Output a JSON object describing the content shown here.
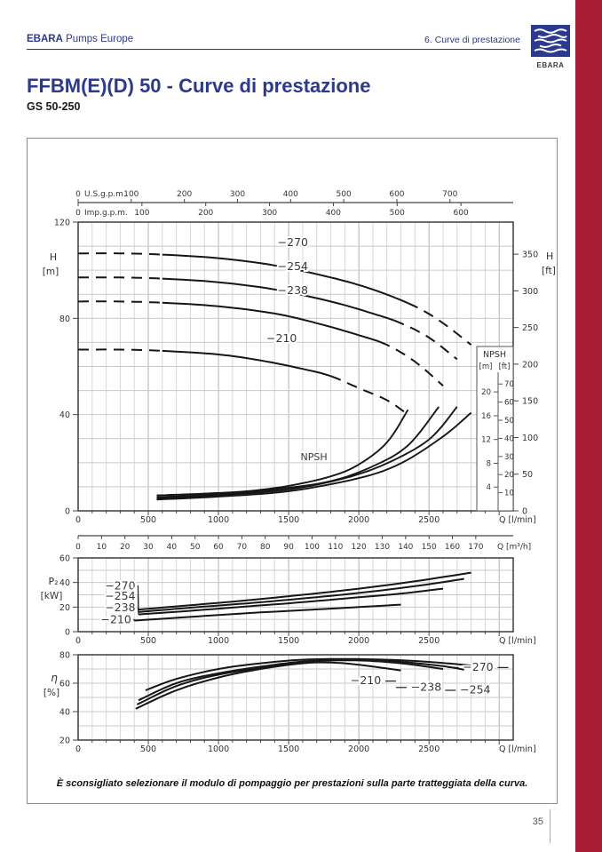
{
  "header": {
    "brand_bold": "EBARA",
    "brand_rest": " Pumps Europe",
    "section": "6.  Curve di prestazione",
    "logo_text": "EBARA"
  },
  "title": "FFBM(E)(D) 50 - Curve di prestazione",
  "subtitle": "GS 50-250",
  "note": "È sconsigliato selezionare il modulo di pompaggio per prestazioni sulla parte tratteggiata della curva.",
  "page_number": "35",
  "colors": {
    "accent_red": "#A81C33",
    "brand_blue": "#2B3990",
    "curve": "#161616",
    "grid_minor": "#d7d7d7",
    "grid_major": "#b2b2b2",
    "grid_h": "#c9c9c9",
    "axis": "#444444",
    "plot_border": "#2f2f2f"
  },
  "chart_data": [
    {
      "id": "head_flow",
      "type": "line",
      "x_axis": {
        "unit": "Q [l/min]",
        "lim": [
          0,
          3100
        ],
        "tick_labels": [
          0,
          500,
          1000,
          1500,
          2000,
          2500
        ],
        "minor_step": 100
      },
      "y_axis": {
        "label": "H",
        "unit": "[m]",
        "lim": [
          0,
          120
        ],
        "tick_labels": [
          120,
          80,
          40,
          0
        ],
        "minor_step": 10
      },
      "right_axis": {
        "label": "H",
        "unit": "[ft]",
        "ticks": [
          350,
          300,
          250,
          200,
          150,
          100,
          50,
          0
        ],
        "m_per_ft": 0.3048
      },
      "top_axes": [
        {
          "label": "U.S.g.p.m.",
          "lmin_per_unit": 3.785,
          "ticks": [
            0,
            100,
            200,
            300,
            400,
            500,
            600,
            700
          ]
        },
        {
          "label": "Imp.g.p.m.",
          "lmin_per_unit": 4.546,
          "ticks": [
            0,
            100,
            200,
            300,
            400,
            500,
            600
          ]
        }
      ],
      "secondary_x_axis": {
        "unit": "Q [m³/h]",
        "lmin_per_unit": 16.667,
        "ticks": [
          0,
          10,
          20,
          30,
          40,
          50,
          60,
          70,
          80,
          90,
          100,
          110,
          120,
          130,
          140,
          150,
          160,
          170
        ]
      },
      "series": [
        {
          "name": "−270",
          "dash_until": 600,
          "dash_from": 2350,
          "label_at": [
            1530,
            109
          ],
          "points": [
            [
              0,
              107
            ],
            [
              300,
              107
            ],
            [
              600,
              106.5
            ],
            [
              1000,
              105
            ],
            [
              1400,
              102
            ],
            [
              1800,
              97
            ],
            [
              2100,
              92
            ],
            [
              2400,
              85
            ],
            [
              2600,
              78
            ],
            [
              2800,
              69
            ]
          ]
        },
        {
          "name": "−254",
          "dash_until": 600,
          "dash_from": 2250,
          "label_at": [
            1530,
            99
          ],
          "points": [
            [
              0,
              97
            ],
            [
              300,
              97
            ],
            [
              600,
              96.5
            ],
            [
              1000,
              95
            ],
            [
              1400,
              92
            ],
            [
              1800,
              87
            ],
            [
              2100,
              82
            ],
            [
              2300,
              78
            ],
            [
              2500,
              72
            ],
            [
              2700,
              63
            ]
          ]
        },
        {
          "name": "−238",
          "dash_until": 600,
          "dash_from": 2150,
          "label_at": [
            1530,
            89
          ],
          "points": [
            [
              0,
              87
            ],
            [
              300,
              87
            ],
            [
              600,
              86.5
            ],
            [
              1000,
              85
            ],
            [
              1400,
              82
            ],
            [
              1700,
              78
            ],
            [
              2000,
              73
            ],
            [
              2200,
              69
            ],
            [
              2400,
              62
            ],
            [
              2600,
              52
            ]
          ]
        },
        {
          "name": "−210",
          "dash_until": 600,
          "dash_from": 1800,
          "label_at": [
            1450,
            69
          ],
          "points": [
            [
              0,
              67
            ],
            [
              300,
              67
            ],
            [
              600,
              66.5
            ],
            [
              1000,
              65
            ],
            [
              1300,
              62.5
            ],
            [
              1600,
              59
            ],
            [
              1800,
              56
            ],
            [
              2000,
              51
            ],
            [
              2200,
              46
            ],
            [
              2350,
              40
            ]
          ]
        }
      ],
      "npsh": {
        "label": "NPSH",
        "label_at": [
          1680,
          21
        ],
        "box": {
          "title": "NPSH",
          "unit_m": "[m]",
          "unit_ft": "[ft]",
          "m_ticks": [
            20,
            16,
            12,
            8,
            4
          ],
          "ft_ticks": [
            70,
            60,
            50,
            40,
            30,
            20,
            10
          ]
        },
        "series": [
          {
            "name": "−210",
            "points": [
              [
                560,
                2.6
              ],
              [
                900,
                2.9
              ],
              [
                1200,
                3.3
              ],
              [
                1500,
                4.2
              ],
              [
                1800,
                5.8
              ],
              [
                2000,
                7.8
              ],
              [
                2200,
                11.5
              ],
              [
                2350,
                17
              ]
            ]
          },
          {
            "name": "−238",
            "points": [
              [
                560,
                2.3
              ],
              [
                1000,
                2.8
              ],
              [
                1400,
                3.6
              ],
              [
                1800,
                5
              ],
              [
                2100,
                7.5
              ],
              [
                2350,
                11
              ],
              [
                2570,
                17.5
              ]
            ]
          },
          {
            "name": "−254",
            "points": [
              [
                560,
                2.1
              ],
              [
                1000,
                2.6
              ],
              [
                1500,
                3.6
              ],
              [
                1900,
                5.5
              ],
              [
                2200,
                8
              ],
              [
                2500,
                12
              ],
              [
                2700,
                17.5
              ]
            ]
          },
          {
            "name": "−270",
            "points": [
              [
                560,
                1.9
              ],
              [
                1000,
                2.4
              ],
              [
                1500,
                3.3
              ],
              [
                2000,
                5.5
              ],
              [
                2300,
                8
              ],
              [
                2600,
                12.5
              ],
              [
                2800,
                16.5
              ]
            ]
          }
        ]
      }
    },
    {
      "id": "power",
      "type": "line",
      "x_axis": {
        "unit": "Q [l/min]",
        "lim": [
          0,
          3100
        ],
        "tick_labels": [
          0,
          500,
          1000,
          1500,
          2000,
          2500
        ],
        "minor_step": 100
      },
      "y_axis": {
        "label": "P₂",
        "unit": "[kW]",
        "lim": [
          0,
          60
        ],
        "tick_labels": [
          60,
          40,
          20,
          0
        ],
        "minor_step": 10
      },
      "series": [
        {
          "name": "−270",
          "label_at": [
            300,
            37
          ],
          "points": [
            [
              430,
              18
            ],
            [
              800,
              21.5
            ],
            [
              1200,
              25.5
            ],
            [
              1600,
              30
            ],
            [
              2000,
              35
            ],
            [
              2400,
              41
            ],
            [
              2800,
              48
            ]
          ]
        },
        {
          "name": "−254",
          "label_at": [
            300,
            28.5
          ],
          "points": [
            [
              430,
              16
            ],
            [
              800,
              19.5
            ],
            [
              1200,
              23
            ],
            [
              1600,
              27
            ],
            [
              2000,
              31.5
            ],
            [
              2400,
              37
            ],
            [
              2750,
              43
            ]
          ]
        },
        {
          "name": "−238",
          "label_at": [
            300,
            19
          ],
          "points": [
            [
              430,
              14
            ],
            [
              800,
              17
            ],
            [
              1200,
              20.5
            ],
            [
              1600,
              24
            ],
            [
              2000,
              28
            ],
            [
              2300,
              31
            ],
            [
              2600,
              35
            ]
          ]
        },
        {
          "name": "−210",
          "label_at": [
            270,
            9.5
          ],
          "points": [
            [
              400,
              9
            ],
            [
              800,
              12
            ],
            [
              1200,
              15
            ],
            [
              1600,
              17.5
            ],
            [
              2000,
              20
            ],
            [
              2300,
              22
            ]
          ]
        }
      ]
    },
    {
      "id": "efficiency",
      "type": "line",
      "x_axis": {
        "unit": "Q [l/min]",
        "lim": [
          0,
          3100
        ],
        "tick_labels": [
          0,
          500,
          1000,
          1500,
          2000,
          2500
        ],
        "minor_step": 100
      },
      "y_axis": {
        "label": "η",
        "unit": "[%]",
        "lim": [
          20,
          80
        ],
        "tick_labels": [
          80,
          60,
          40,
          20
        ],
        "minor_step": 10
      },
      "series": [
        {
          "name": "−270",
          "label_at": [
            2850,
            71
          ],
          "leader": "both",
          "points": [
            [
              480,
              55
            ],
            [
              700,
              63
            ],
            [
              1000,
              70
            ],
            [
              1300,
              74
            ],
            [
              1600,
              76.5
            ],
            [
              1900,
              77
            ],
            [
              2200,
              76.5
            ],
            [
              2500,
              75
            ],
            [
              2800,
              72.5
            ]
          ]
        },
        {
          "name": "−254",
          "label_at": [
            2830,
            55
          ],
          "leader": "left",
          "points": [
            [
              430,
              48
            ],
            [
              700,
              60
            ],
            [
              1000,
              67
            ],
            [
              1400,
              73
            ],
            [
              1700,
              76
            ],
            [
              2000,
              76.5
            ],
            [
              2300,
              75
            ],
            [
              2600,
              72
            ],
            [
              2750,
              69.5
            ]
          ]
        },
        {
          "name": "−238",
          "label_at": [
            2480,
            57
          ],
          "leader": "left",
          "points": [
            [
              420,
              45
            ],
            [
              700,
              58
            ],
            [
              1000,
              66
            ],
            [
              1400,
              72
            ],
            [
              1700,
              75.5
            ],
            [
              2000,
              76
            ],
            [
              2300,
              74
            ],
            [
              2600,
              70
            ]
          ]
        },
        {
          "name": "−210",
          "label_at": [
            2050,
            61.5
          ],
          "leader": "right",
          "points": [
            [
              410,
              42
            ],
            [
              700,
              55
            ],
            [
              1000,
              64
            ],
            [
              1300,
              70
            ],
            [
              1600,
              74
            ],
            [
              1800,
              74.5
            ],
            [
              2000,
              73
            ],
            [
              2300,
              69
            ]
          ]
        }
      ]
    }
  ]
}
